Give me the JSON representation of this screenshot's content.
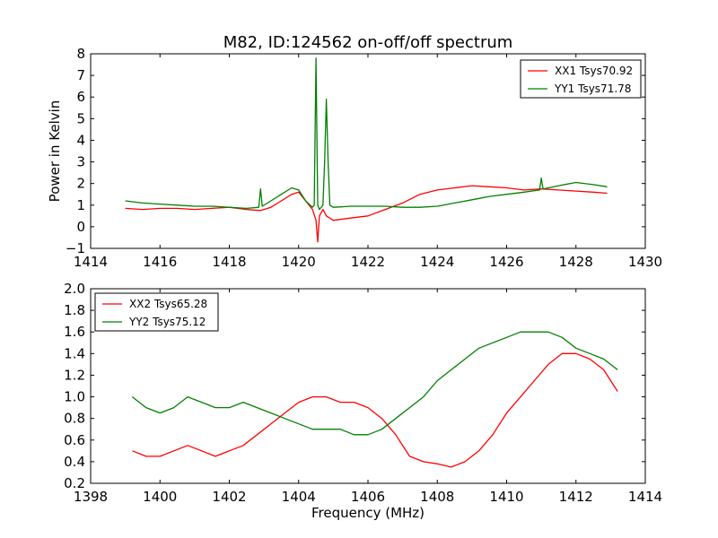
{
  "figure": {
    "title": "M82, ID:124562 on-off/off spectrum"
  },
  "chart_data": [
    {
      "type": "line",
      "title": "M82, ID:124562 on-off/off spectrum",
      "xlabel": "",
      "ylabel": "Power in Kelvin",
      "xlim": [
        1414,
        1430
      ],
      "ylim": [
        -1,
        8
      ],
      "xticks": [
        1414,
        1416,
        1418,
        1420,
        1422,
        1424,
        1426,
        1428,
        1430
      ],
      "yticks": [
        -1,
        0,
        1,
        2,
        3,
        4,
        5,
        6,
        7,
        8
      ],
      "grid": false,
      "legend_position": "top-right",
      "series": [
        {
          "name": "XX1 Tsys70.92",
          "color": "#ff0000",
          "x": [
            1415.0,
            1415.5,
            1416.0,
            1416.5,
            1417.0,
            1417.5,
            1418.0,
            1418.5,
            1418.9,
            1419.2,
            1419.5,
            1419.8,
            1420.0,
            1420.2,
            1420.4,
            1420.5,
            1420.55,
            1420.6,
            1420.7,
            1420.8,
            1421.0,
            1421.5,
            1422.0,
            1422.5,
            1423.0,
            1423.5,
            1424.0,
            1424.5,
            1425.0,
            1425.5,
            1426.0,
            1426.5,
            1427.0,
            1427.5,
            1428.0,
            1428.5,
            1428.9
          ],
          "y": [
            0.85,
            0.8,
            0.85,
            0.85,
            0.8,
            0.85,
            0.9,
            0.8,
            0.75,
            0.9,
            1.2,
            1.5,
            1.6,
            1.2,
            0.8,
            0.3,
            -0.7,
            0.5,
            0.8,
            0.5,
            0.3,
            0.4,
            0.5,
            0.8,
            1.1,
            1.5,
            1.7,
            1.8,
            1.9,
            1.85,
            1.8,
            1.7,
            1.75,
            1.7,
            1.65,
            1.6,
            1.55
          ]
        },
        {
          "name": "YY1 Tsys71.78",
          "color": "#008000",
          "x": [
            1415.0,
            1415.5,
            1416.0,
            1416.5,
            1417.0,
            1417.5,
            1418.0,
            1418.5,
            1418.85,
            1418.9,
            1418.95,
            1419.2,
            1419.5,
            1419.8,
            1420.0,
            1420.2,
            1420.4,
            1420.45,
            1420.5,
            1420.55,
            1420.6,
            1420.7,
            1420.75,
            1420.8,
            1420.85,
            1420.9,
            1421.0,
            1421.5,
            1422.0,
            1422.5,
            1423.0,
            1423.5,
            1424.0,
            1424.5,
            1425.0,
            1425.5,
            1426.0,
            1426.5,
            1426.95,
            1427.0,
            1427.05,
            1427.5,
            1428.0,
            1428.5,
            1428.9
          ],
          "y": [
            1.2,
            1.1,
            1.05,
            1.0,
            0.95,
            0.95,
            0.9,
            0.85,
            0.9,
            1.75,
            0.95,
            1.2,
            1.5,
            1.8,
            1.7,
            1.2,
            0.9,
            1.0,
            7.8,
            1.0,
            0.8,
            1.0,
            3.0,
            5.9,
            3.0,
            1.0,
            0.9,
            0.95,
            0.95,
            0.95,
            0.9,
            0.9,
            0.95,
            1.1,
            1.25,
            1.4,
            1.5,
            1.6,
            1.7,
            2.25,
            1.75,
            1.9,
            2.05,
            1.95,
            1.85
          ]
        }
      ]
    },
    {
      "type": "line",
      "title": "",
      "xlabel": "Frequency (MHz)",
      "ylabel": "",
      "xlim": [
        1398,
        1414
      ],
      "ylim": [
        0.2,
        2.0
      ],
      "xticks": [
        1398,
        1400,
        1402,
        1404,
        1406,
        1408,
        1410,
        1412,
        1414
      ],
      "yticks": [
        0.2,
        0.4,
        0.6,
        0.8,
        1.0,
        1.2,
        1.4,
        1.6,
        1.8,
        2.0
      ],
      "grid": false,
      "legend_position": "top-left",
      "series": [
        {
          "name": "XX2 Tsys65.28",
          "color": "#ff0000",
          "x": [
            1399.2,
            1399.6,
            1400.0,
            1400.4,
            1400.8,
            1401.2,
            1401.6,
            1402.0,
            1402.4,
            1402.8,
            1403.2,
            1403.6,
            1404.0,
            1404.4,
            1404.8,
            1405.2,
            1405.6,
            1406.0,
            1406.4,
            1406.8,
            1407.2,
            1407.6,
            1408.0,
            1408.4,
            1408.8,
            1409.2,
            1409.6,
            1410.0,
            1410.4,
            1410.8,
            1411.2,
            1411.6,
            1412.0,
            1412.4,
            1412.8,
            1413.2
          ],
          "y": [
            0.5,
            0.45,
            0.45,
            0.5,
            0.55,
            0.5,
            0.45,
            0.5,
            0.55,
            0.65,
            0.75,
            0.85,
            0.95,
            1.0,
            1.0,
            0.95,
            0.95,
            0.9,
            0.8,
            0.65,
            0.45,
            0.4,
            0.38,
            0.35,
            0.4,
            0.5,
            0.65,
            0.85,
            1.0,
            1.15,
            1.3,
            1.4,
            1.4,
            1.35,
            1.25,
            1.05
          ]
        },
        {
          "name": "YY2 Tsys75.12",
          "color": "#008000",
          "x": [
            1399.2,
            1399.6,
            1400.0,
            1400.4,
            1400.8,
            1401.2,
            1401.6,
            1402.0,
            1402.4,
            1402.8,
            1403.2,
            1403.6,
            1404.0,
            1404.4,
            1404.8,
            1405.2,
            1405.6,
            1406.0,
            1406.4,
            1406.8,
            1407.2,
            1407.6,
            1408.0,
            1408.4,
            1408.8,
            1409.2,
            1409.6,
            1410.0,
            1410.4,
            1410.8,
            1411.2,
            1411.6,
            1412.0,
            1412.4,
            1412.8,
            1413.2
          ],
          "y": [
            1.0,
            0.9,
            0.85,
            0.9,
            1.0,
            0.95,
            0.9,
            0.9,
            0.95,
            0.9,
            0.85,
            0.8,
            0.75,
            0.7,
            0.7,
            0.7,
            0.65,
            0.65,
            0.7,
            0.8,
            0.9,
            1.0,
            1.15,
            1.25,
            1.35,
            1.45,
            1.5,
            1.55,
            1.6,
            1.6,
            1.6,
            1.55,
            1.45,
            1.4,
            1.35,
            1.25
          ]
        }
      ]
    }
  ]
}
